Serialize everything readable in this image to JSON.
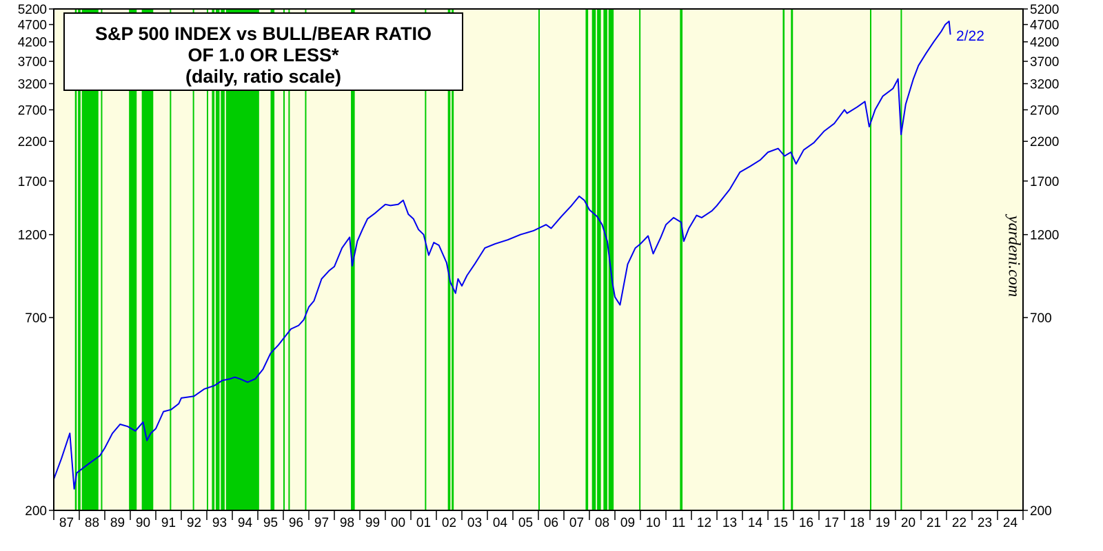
{
  "chart_data": {
    "type": "line",
    "title_lines": [
      "S&P 500 INDEX vs BULL/BEAR RATIO",
      "OF 1.0 OR LESS*",
      "(daily, ratio scale)"
    ],
    "y_scale": "log",
    "ylim": [
      200,
      5200
    ],
    "y_ticks": [
      200,
      700,
      1200,
      1700,
      2200,
      2700,
      3200,
      3700,
      4200,
      4700,
      5200
    ],
    "x_tick_labels": [
      "87",
      "88",
      "89",
      "90",
      "91",
      "92",
      "93",
      "94",
      "95",
      "96",
      "97",
      "98",
      "99",
      "00",
      "01",
      "02",
      "03",
      "04",
      "05",
      "06",
      "07",
      "08",
      "09",
      "10",
      "11",
      "12",
      "13",
      "14",
      "15",
      "16",
      "17",
      "18",
      "19",
      "20",
      "21",
      "22",
      "23",
      "24"
    ],
    "xlim": [
      1987.0,
      2025.0
    ],
    "series": [
      {
        "color": "#0000ee",
        "x": [
          1987.0,
          1987.3,
          1987.63,
          1987.8,
          1987.9,
          1988.2,
          1988.5,
          1988.8,
          1989.0,
          1989.3,
          1989.6,
          1989.9,
          1990.2,
          1990.5,
          1990.65,
          1990.8,
          1991.0,
          1991.3,
          1991.6,
          1991.9,
          1992.0,
          1992.5,
          1992.9,
          1993.3,
          1993.6,
          1993.9,
          1994.1,
          1994.3,
          1994.6,
          1994.9,
          1995.2,
          1995.5,
          1995.8,
          1996.0,
          1996.3,
          1996.6,
          1996.8,
          1997.0,
          1997.2,
          1997.5,
          1997.8,
          1998.0,
          1998.3,
          1998.6,
          1998.7,
          1998.9,
          1999.1,
          1999.3,
          1999.6,
          1999.8,
          2000.0,
          2000.2,
          2000.5,
          2000.7,
          2000.9,
          2001.1,
          2001.3,
          2001.5,
          2001.7,
          2001.9,
          2002.1,
          2002.4,
          2002.55,
          2002.75,
          2002.85,
          2003.0,
          2003.2,
          2003.5,
          2003.9,
          2004.3,
          2004.8,
          2005.3,
          2005.8,
          2006.3,
          2006.5,
          2006.9,
          2007.3,
          2007.6,
          2007.8,
          2008.0,
          2008.3,
          2008.5,
          2008.7,
          2008.9,
          2009.0,
          2009.2,
          2009.5,
          2009.8,
          2010.0,
          2010.3,
          2010.5,
          2010.8,
          2011.0,
          2011.3,
          2011.6,
          2011.7,
          2011.9,
          2012.2,
          2012.4,
          2012.8,
          2013.0,
          2013.5,
          2013.9,
          2014.3,
          2014.7,
          2015.0,
          2015.4,
          2015.65,
          2015.9,
          2016.1,
          2016.4,
          2016.8,
          2017.2,
          2017.6,
          2018.0,
          2018.1,
          2018.5,
          2018.8,
          2018.97,
          2019.2,
          2019.5,
          2019.9,
          2020.1,
          2020.22,
          2020.4,
          2020.7,
          2020.9,
          2021.2,
          2021.5,
          2021.8,
          2021.95,
          2022.1,
          2022.15
        ],
        "y": [
          245,
          280,
          330,
          230,
          255,
          265,
          275,
          285,
          300,
          330,
          350,
          345,
          335,
          355,
          315,
          330,
          340,
          380,
          385,
          400,
          415,
          420,
          440,
          450,
          465,
          470,
          475,
          470,
          460,
          470,
          500,
          555,
          585,
          610,
          650,
          665,
          690,
          750,
          780,
          900,
          950,
          975,
          1100,
          1180,
          980,
          1150,
          1240,
          1330,
          1380,
          1420,
          1460,
          1450,
          1460,
          1500,
          1370,
          1330,
          1240,
          1200,
          1050,
          1140,
          1120,
          1000,
          880,
          820,
          900,
          860,
          920,
          990,
          1100,
          1130,
          1160,
          1200,
          1230,
          1280,
          1250,
          1350,
          1450,
          1540,
          1500,
          1410,
          1350,
          1280,
          1150,
          880,
          800,
          760,
          990,
          1100,
          1130,
          1190,
          1060,
          1180,
          1280,
          1340,
          1300,
          1150,
          1250,
          1360,
          1340,
          1400,
          1450,
          1610,
          1800,
          1870,
          1950,
          2050,
          2100,
          2000,
          2050,
          1900,
          2080,
          2180,
          2350,
          2470,
          2700,
          2640,
          2750,
          2850,
          2420,
          2700,
          2950,
          3100,
          3300,
          2300,
          2800,
          3300,
          3600,
          3900,
          4200,
          4500,
          4700,
          4800,
          4400
        ],
        "end_label": "2/22"
      }
    ],
    "shaded_periods_note": "green bands = bull/bear ratio of 1.0 or less",
    "shaded_periods": [
      [
        1987.83,
        1987.9
      ],
      [
        1987.95,
        1988.05
      ],
      [
        1988.1,
        1988.75
      ],
      [
        1988.85,
        1988.88
      ],
      [
        1989.95,
        1990.25
      ],
      [
        1990.45,
        1990.9
      ],
      [
        1991.55,
        1991.58
      ],
      [
        1992.45,
        1992.48
      ],
      [
        1993.0,
        1993.03
      ],
      [
        1993.2,
        1993.3
      ],
      [
        1993.35,
        1993.5
      ],
      [
        1993.55,
        1993.7
      ],
      [
        1993.75,
        1995.05
      ],
      [
        1995.5,
        1995.65
      ],
      [
        1996.0,
        1996.03
      ],
      [
        1996.2,
        1996.23
      ],
      [
        1996.85,
        1996.9
      ],
      [
        1998.65,
        1998.8
      ],
      [
        2001.55,
        2001.58
      ],
      [
        2002.45,
        2002.55
      ],
      [
        2002.6,
        2002.68
      ],
      [
        2006.0,
        2006.03
      ],
      [
        2007.85,
        2007.95
      ],
      [
        2008.1,
        2008.25
      ],
      [
        2008.3,
        2008.45
      ],
      [
        2008.55,
        2008.7
      ],
      [
        2008.75,
        2008.95
      ],
      [
        2009.95,
        2009.98
      ],
      [
        2011.55,
        2011.65
      ],
      [
        2015.58,
        2015.65
      ],
      [
        2015.9,
        2015.98
      ],
      [
        2019.0,
        2019.03
      ],
      [
        2020.2,
        2020.25
      ]
    ],
    "background_color": "#fdfde0",
    "band_color": "#00cc00",
    "watermark": "yardeni.com"
  }
}
